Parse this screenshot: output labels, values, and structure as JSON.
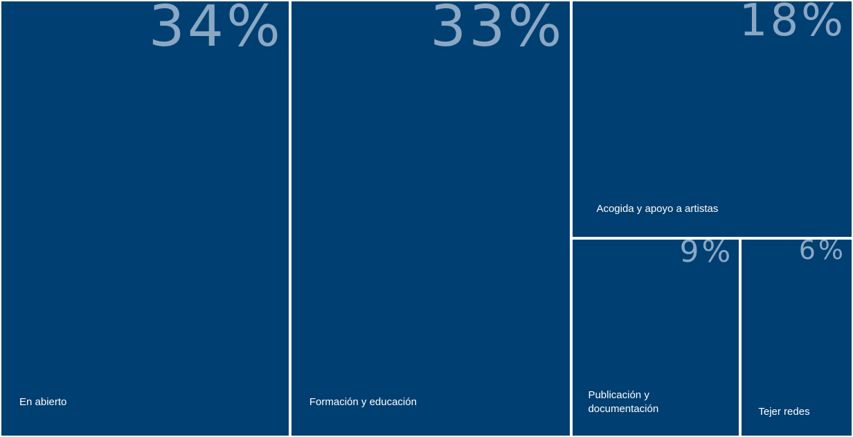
{
  "chart_data": {
    "type": "treemap",
    "title": "",
    "items": [
      {
        "label": "En abierto",
        "value": 34,
        "value_label": "34%"
      },
      {
        "label": "Formación y educación",
        "value": 33,
        "value_label": "33%"
      },
      {
        "label": "Acogida y apoyo a artistas",
        "value": 18,
        "value_label": "18%"
      },
      {
        "label": "Publicación y\ndocumentación",
        "value": 9,
        "value_label": "9%"
      },
      {
        "label": "Tejer redes",
        "value": 6,
        "value_label": "6%"
      }
    ]
  },
  "colors": {
    "tile": "#003f72",
    "percent_text": "#8aa8c4",
    "label_text": "#ffffff",
    "gap": "#ffffff"
  }
}
